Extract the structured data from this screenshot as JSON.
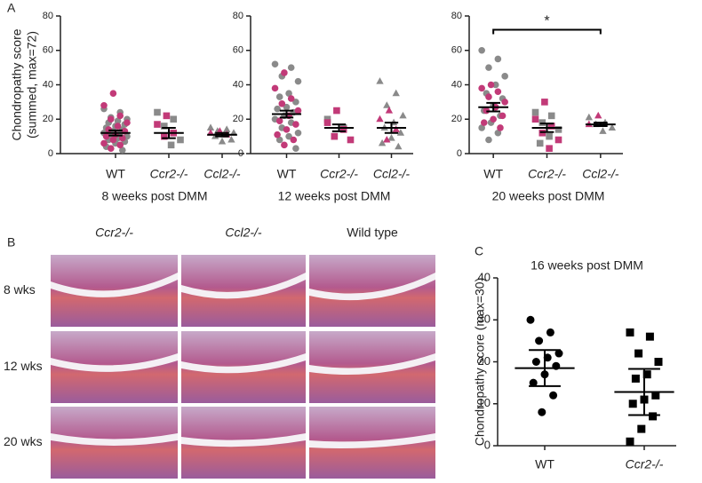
{
  "panel_labels": [
    "A",
    "B",
    "C"
  ],
  "histology": {
    "columns": [
      "Ccr2-/-",
      "Ccl2-/-",
      "Wild type"
    ],
    "rows": [
      "8 wks",
      "12 wks",
      "20 wks"
    ]
  },
  "chart_data": [
    {
      "type": "strip",
      "ylabel": [
        "Chondropathy score",
        "(summed, max=72)"
      ],
      "xlabel": "8 weeks post DMM",
      "categories": [
        "WT",
        "Ccr2-/-",
        "Ccl2-/-"
      ],
      "category_italic": [
        false,
        true,
        true
      ],
      "markers": [
        "circle",
        "square",
        "triangle"
      ],
      "ylim": [
        0,
        80
      ],
      "yticks": [
        0,
        20,
        40,
        60,
        80
      ],
      "series": [
        {
          "color": "#8a8a8a",
          "values": [
            [
              26,
              24,
              21,
              20,
              19,
              18,
              17,
              16,
              15,
              14,
              13,
              12,
              12,
              11,
              10,
              9,
              8,
              7,
              6,
              4,
              2
            ],
            [
              24,
              20,
              16,
              8,
              5
            ],
            [
              15,
              14,
              13,
              12,
              11,
              10,
              8,
              7
            ]
          ]
        },
        {
          "color": "#c23a78",
          "values": [
            [
              35,
              28,
              22,
              20,
              18,
              16,
              14,
              13,
              11,
              10,
              9,
              8,
              6,
              5,
              3
            ],
            [
              22,
              17,
              12,
              10
            ],
            [
              13,
              12,
              11
            ]
          ]
        }
      ],
      "mean": [
        12,
        12,
        11
      ],
      "error": [
        1.5,
        3,
        1
      ]
    },
    {
      "type": "strip",
      "xlabel": "12 weeks post DMM",
      "categories": [
        "WT",
        "Ccr2-/-",
        "Ccl2-/-"
      ],
      "category_italic": [
        false,
        true,
        true
      ],
      "markers": [
        "circle",
        "square",
        "triangle"
      ],
      "ylim": [
        0,
        80
      ],
      "yticks": [
        0,
        20,
        40,
        60,
        80
      ],
      "series": [
        {
          "color": "#8a8a8a",
          "values": [
            [
              52,
              50,
              45,
              42,
              35,
              33,
              30,
              27,
              26,
              24,
              22,
              20,
              18,
              15,
              12,
              10,
              8,
              3
            ],
            [
              20,
              15,
              10
            ],
            [
              42,
              35,
              28,
              22,
              18,
              15,
              12,
              9,
              6,
              4
            ]
          ]
        },
        {
          "color": "#c23a78",
          "values": [
            [
              47,
              38,
              32,
              29,
              25,
              22,
              19,
              17,
              14,
              11,
              8,
              5
            ],
            [
              25,
              18,
              14,
              10,
              8
            ],
            [
              25,
              20,
              14,
              8
            ]
          ]
        }
      ],
      "mean": [
        23,
        15,
        15
      ],
      "error": [
        2,
        2,
        3
      ]
    },
    {
      "type": "strip",
      "xlabel": "20 weeks post DMM",
      "categories": [
        "WT",
        "Ccr2-/-",
        "Ccl2-/-"
      ],
      "category_italic": [
        false,
        true,
        true
      ],
      "markers": [
        "circle",
        "square",
        "triangle"
      ],
      "ylim": [
        0,
        80
      ],
      "yticks": [
        0,
        20,
        40,
        60,
        80
      ],
      "series": [
        {
          "color": "#8a8a8a",
          "values": [
            [
              60,
              55,
              50,
              45,
              40,
              35,
              32,
              28,
              25,
              22,
              18,
              15,
              12,
              8
            ],
            [
              24,
              22,
              18,
              14,
              10,
              6
            ],
            [
              21,
              18,
              17,
              15,
              13
            ]
          ]
        },
        {
          "color": "#c23a78",
          "values": [
            [
              40,
              38,
              36,
              33,
              30,
              27,
              25,
              22,
              20,
              18,
              15
            ],
            [
              30,
              20,
              16,
              12,
              8,
              3
            ],
            [
              22,
              17
            ]
          ]
        }
      ],
      "mean": [
        27,
        15,
        17
      ],
      "error": [
        2.5,
        2.5,
        1
      ],
      "annotations": [
        {
          "from": 0,
          "to": 2,
          "y": 72,
          "text": "*"
        }
      ]
    },
    {
      "type": "strip",
      "title": "16 weeks post DMM",
      "ylabel": [
        "Chondropathy score (max=30)"
      ],
      "categories": [
        "WT",
        "Ccr2-/-"
      ],
      "category_italic": [
        false,
        true
      ],
      "markers": [
        "circle",
        "square"
      ],
      "ylim": [
        0,
        40
      ],
      "yticks": [
        0,
        10,
        20,
        30,
        40
      ],
      "series": [
        {
          "color": "#000000",
          "values": [
            [
              30,
              27,
              25,
              22,
              21,
              20,
              19,
              17,
              15,
              12,
              8
            ],
            [
              27,
              26,
              22,
              20,
              17,
              16,
              12,
              11,
              10,
              7,
              4,
              1
            ]
          ]
        }
      ],
      "mean": [
        18.5,
        12.8
      ],
      "error": [
        4.3,
        5.5
      ]
    }
  ]
}
